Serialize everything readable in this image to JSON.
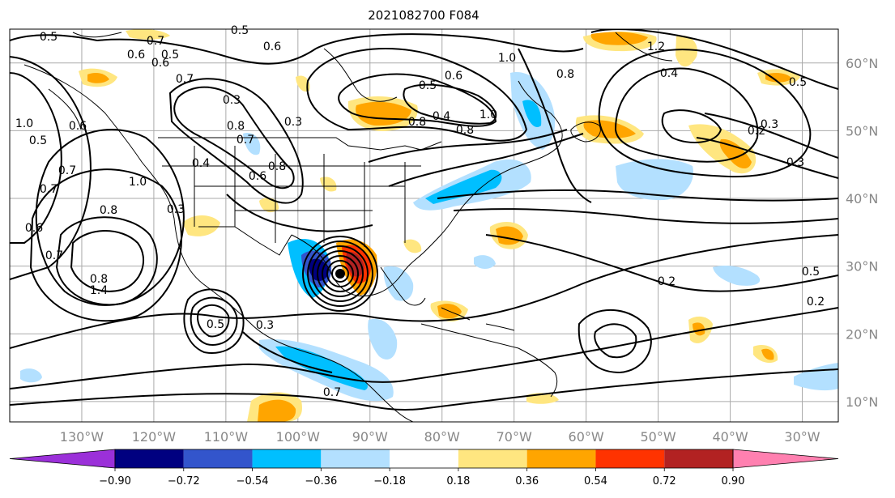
{
  "title": "2021082700 F084",
  "map": {
    "projection": "plate carree",
    "lon_range": [
      -140,
      -25
    ],
    "lat_range": [
      7,
      65
    ],
    "x_ticks": [
      "130°W",
      "120°W",
      "110°W",
      "100°W",
      "90°W",
      "80°W",
      "70°W",
      "60°W",
      "50°W",
      "40°W",
      "30°W"
    ],
    "y_ticks": [
      "10°N",
      "20°N",
      "30°N",
      "40°N",
      "50°N",
      "60°N"
    ],
    "grid": true,
    "colors": {
      "ocean": "#ffffff",
      "coast": "#000000",
      "grid": "#aaaaaa",
      "contour": "#000000"
    }
  },
  "colorbar": {
    "levels": [
      "−0.90",
      "−0.72",
      "−0.54",
      "−0.36",
      "−0.18",
      "0.18",
      "0.36",
      "0.54",
      "0.72",
      "0.90"
    ],
    "colors": [
      "#9b30d9",
      "#000080",
      "#3355cc",
      "#00bfff",
      "#b3e0ff",
      "#ffffff",
      "#ffe680",
      "#ffa500",
      "#ff3300",
      "#b22222",
      "#ff80b0"
    ],
    "extend": "both"
  },
  "contour_labels": [
    "0.5",
    "0.7",
    "0.6",
    "0.5",
    "0.6",
    "0.7",
    "0.5",
    "0.6",
    "0.4",
    "0.5",
    "0.6",
    "0.8",
    "1.0",
    "0.8",
    "0.8",
    "1.0",
    "0.3",
    "0.8",
    "0.7",
    "0.3",
    "0.8",
    "0.6",
    "0.4",
    "1.0",
    "0.8",
    "0.7",
    "0.7",
    "0.6",
    "1.0",
    "0.5",
    "0.6",
    "0.7",
    "0.8",
    "0.3",
    "0.5",
    "0.3",
    "1.4",
    "1.2",
    "0.5",
    "0.4",
    "0.3",
    "0.2",
    "0.3",
    "0.2",
    "0.2",
    "0.5",
    "0.7"
  ],
  "features": {
    "cyclone_center": "hurricane-center"
  }
}
